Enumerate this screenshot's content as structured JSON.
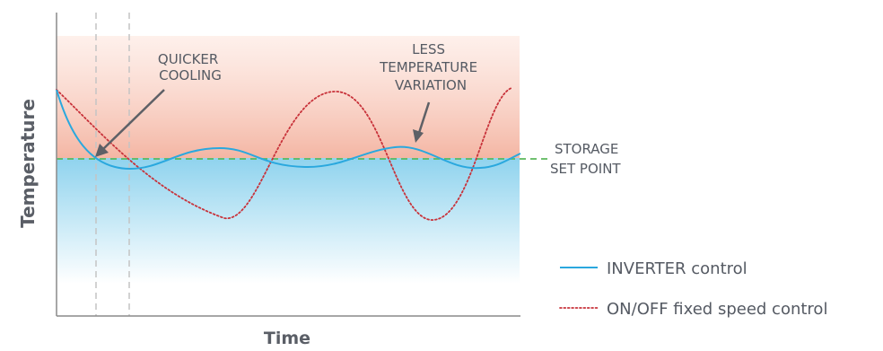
{
  "chart_data": {
    "type": "line",
    "xlabel": "Time",
    "ylabel": "Temperature",
    "set_point_label": [
      "STORAGE",
      "SET POINT"
    ],
    "annotations": [
      {
        "id": "quicker",
        "lines": [
          "QUICKER",
          "COOLING"
        ]
      },
      {
        "id": "variation",
        "lines": [
          "LESS",
          "TEMPERATURE",
          "VARIATION"
        ]
      }
    ],
    "legend": [
      {
        "label": "INVERTER control",
        "color": "#2aa8de",
        "style": "solid"
      },
      {
        "label": "ON/OFF fixed speed control",
        "color": "#c8323a",
        "style": "dotted"
      }
    ],
    "colors": {
      "warm_zone": "#f4b6a4",
      "cool_zone": "#8fd3ee",
      "set_point": "#5cb85c",
      "guides": "#bdbdbd",
      "axis": "#8a8a8a"
    }
  }
}
